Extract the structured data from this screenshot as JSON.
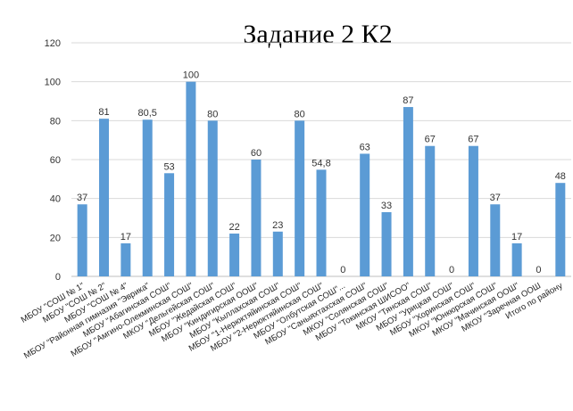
{
  "chart_data": {
    "type": "bar",
    "title": "Задание 2 К2",
    "xlabel": "",
    "ylabel": "",
    "ylim": [
      0,
      120
    ],
    "yticks": [
      0,
      20,
      40,
      60,
      80,
      100,
      120
    ],
    "grid": true,
    "legend": "none",
    "bar_color": "#5b9bd5",
    "categories": [
      "МБОУ \"СОШ № 1\"",
      "МБОУ \"СОШ № 2\"",
      "МБОУ \"СОШ № 4\"",
      "МБОУ \"Районная гимназия \"Эврика\"",
      "МБОУ \"Абагинская СОШ\"",
      "МБОУ \"Амгино-Олекминская СОШ\"",
      "МКОУ \"Дельгейская СОШ\"",
      "МБОУ \"Жедайская СОШ\"",
      "МБОУ \"Киндигирская ООШ\"",
      "МБОУ \"Кыллахская СОШ\"",
      "МБОУ \"1-Нерюктяйинская СОШ\"",
      "МБОУ \"2-Нерюктяйинская СОШ\"",
      "МБОУ \"Олбутская СОШ\"...",
      "МБОУ \"Саныяхтахская СОШ\"",
      "МКОУ \"Солянская СОШ\"",
      "МБОУ \"Токинская ШИСОО\"",
      "МКОУ \"Тянская СОШ\"",
      "МБОУ \"Урицкая СОШ\"",
      "МБОУ \"Хоринская СОШ\"",
      "МКОУ \"Юнкюрская СОШ\"",
      "МКОУ \"Мачинская ООШ\"",
      "МКОУ \"Заречная ООШ",
      "Итого по району"
    ],
    "values": [
      37,
      81,
      17,
      80.5,
      53,
      100,
      80,
      22,
      60,
      23,
      80,
      54.8,
      0,
      63,
      33,
      87,
      67,
      0,
      67,
      37,
      17,
      0,
      48
    ],
    "data_labels": [
      "37",
      "81",
      "17",
      "80,5",
      "53",
      "100",
      "80",
      "22",
      "60",
      "23",
      "80",
      "54,8",
      "0",
      "63",
      "33",
      "87",
      "67",
      "0",
      "67",
      "37",
      "17",
      "0",
      "48"
    ]
  }
}
